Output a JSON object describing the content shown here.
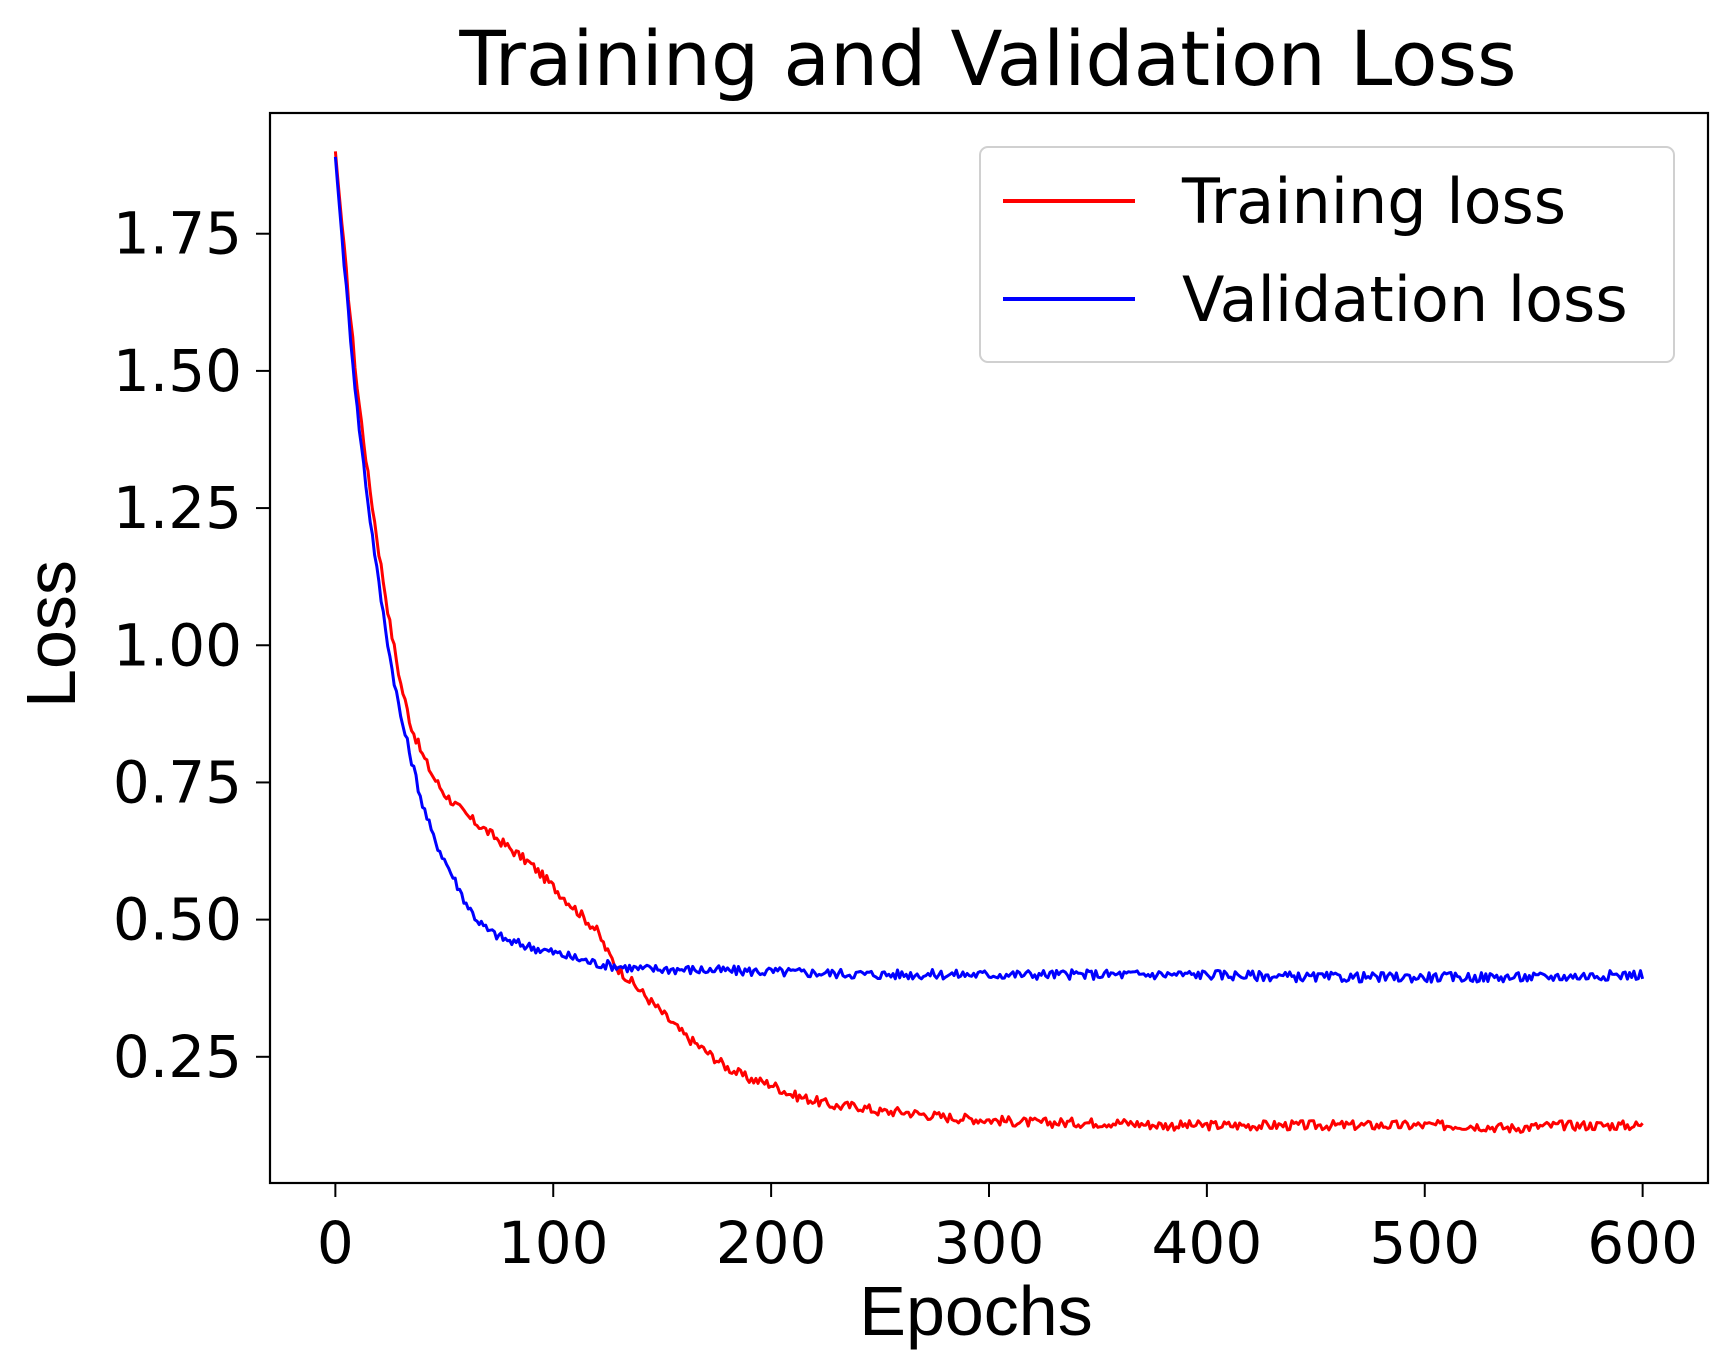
{
  "chart_data": {
    "type": "line",
    "title": "Training and Validation Loss",
    "xlabel": "Epochs",
    "ylabel": "Loss",
    "xlim": [
      -30,
      630
    ],
    "ylim": [
      0.02,
      1.97
    ],
    "xticks": [
      {
        "value": 0,
        "label": "0"
      },
      {
        "value": 100,
        "label": "100"
      },
      {
        "value": 200,
        "label": "200"
      },
      {
        "value": 300,
        "label": "300"
      },
      {
        "value": 400,
        "label": "400"
      },
      {
        "value": 500,
        "label": "500"
      },
      {
        "value": 600,
        "label": "600"
      }
    ],
    "yticks": [
      {
        "value": 0.25,
        "label": "0.25"
      },
      {
        "value": 0.5,
        "label": "0.50"
      },
      {
        "value": 0.75,
        "label": "0.75"
      },
      {
        "value": 1.0,
        "label": "1.00"
      },
      {
        "value": 1.25,
        "label": "1.25"
      },
      {
        "value": 1.5,
        "label": "1.50"
      },
      {
        "value": 1.75,
        "label": "1.75"
      }
    ],
    "grid": false,
    "legend_position": "top-right",
    "series": [
      {
        "name": "Training loss",
        "color": "#ff0000",
        "x": [
          0,
          5,
          10,
          15,
          20,
          25,
          30,
          35,
          40,
          45,
          50,
          55,
          60,
          70,
          80,
          90,
          100,
          110,
          120,
          125,
          130,
          140,
          150,
          160,
          170,
          180,
          190,
          200,
          210,
          220,
          230,
          240,
          250,
          260,
          270,
          280,
          300,
          320,
          340,
          360,
          380,
          400,
          450,
          500,
          520,
          540,
          560,
          580,
          600
        ],
        "y": [
          1.9,
          1.68,
          1.47,
          1.31,
          1.17,
          1.04,
          0.93,
          0.85,
          0.8,
          0.76,
          0.73,
          0.71,
          0.69,
          0.66,
          0.63,
          0.6,
          0.56,
          0.52,
          0.48,
          0.44,
          0.41,
          0.37,
          0.33,
          0.29,
          0.26,
          0.23,
          0.21,
          0.2,
          0.18,
          0.17,
          0.16,
          0.16,
          0.15,
          0.15,
          0.145,
          0.14,
          0.135,
          0.13,
          0.13,
          0.13,
          0.125,
          0.125,
          0.125,
          0.125,
          0.125,
          0.12,
          0.125,
          0.125,
          0.125
        ]
      },
      {
        "name": "Validation loss",
        "color": "#0000ff",
        "x": [
          0,
          5,
          10,
          15,
          20,
          25,
          30,
          35,
          40,
          45,
          50,
          55,
          60,
          65,
          70,
          80,
          90,
          100,
          110,
          120,
          130,
          140,
          150,
          200,
          250,
          300,
          350,
          400,
          450,
          500,
          550,
          600
        ],
        "y": [
          1.89,
          1.65,
          1.43,
          1.26,
          1.11,
          0.98,
          0.87,
          0.79,
          0.71,
          0.65,
          0.61,
          0.57,
          0.53,
          0.5,
          0.48,
          0.46,
          0.45,
          0.44,
          0.43,
          0.42,
          0.415,
          0.41,
          0.41,
          0.405,
          0.4,
          0.4,
          0.4,
          0.4,
          0.395,
          0.395,
          0.395,
          0.4
        ]
      }
    ]
  }
}
